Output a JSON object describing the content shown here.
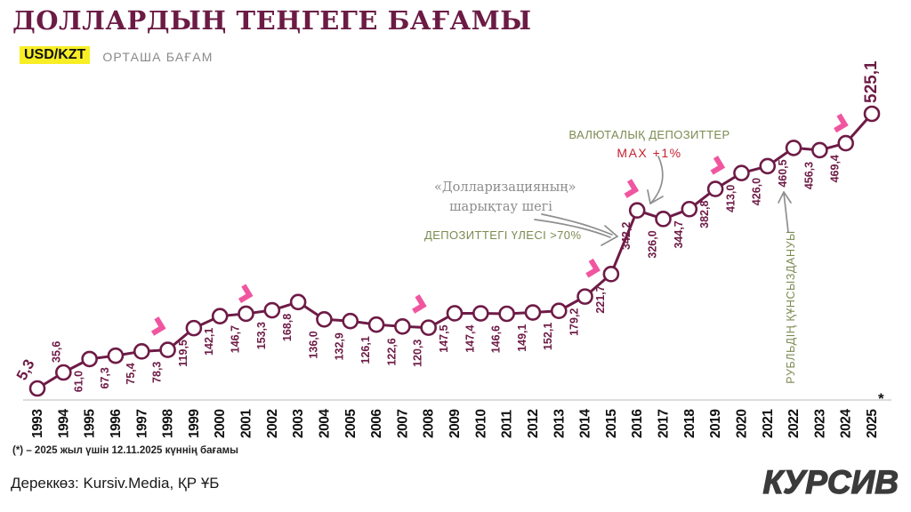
{
  "header": {
    "title": "ДОЛЛАРДЫҢ ТЕҢГЕГЕ БАҒАМЫ",
    "pair_badge": "USD/KZT",
    "subtitle": "ОРТАША БАҒАМ"
  },
  "chart_data": {
    "type": "line",
    "x": [
      1993,
      1994,
      1995,
      1996,
      1997,
      1998,
      1999,
      2000,
      2001,
      2002,
      2003,
      2004,
      2005,
      2006,
      2007,
      2008,
      2009,
      2010,
      2011,
      2012,
      2013,
      2014,
      2015,
      2016,
      2017,
      2018,
      2019,
      2020,
      2021,
      2022,
      2023,
      2024,
      2025
    ],
    "values": [
      5.3,
      35.6,
      61.0,
      67.3,
      75.4,
      78.3,
      119.5,
      142.1,
      146.7,
      153.3,
      168.8,
      136.0,
      132.9,
      126.1,
      122.6,
      120.3,
      147.5,
      147.4,
      146.6,
      149.1,
      152.1,
      179.2,
      221.7,
      342.2,
      326.0,
      344.7,
      382.8,
      413.0,
      426.0,
      460.5,
      456.3,
      469.4,
      525.1
    ],
    "display_labels": [
      "5,3",
      "35,6",
      "61,0",
      "67,3",
      "75,4",
      "78,3",
      "119,5",
      "142,1",
      "146,7",
      "153,3",
      "168,8",
      "136,0",
      "132,9",
      "126,1",
      "122,6",
      "120,3",
      "147,5",
      "147,4",
      "146,6",
      "149,1",
      "152,1",
      "179,2",
      "221,7",
      "342,2",
      "326,0",
      "344,7",
      "382,8",
      "413,0",
      "426,0",
      "460,5",
      "456,3",
      "469,4",
      "525,1"
    ],
    "ylim": [
      0,
      560
    ],
    "grid": false,
    "marker": "open-circle",
    "highlight_years": [
      1998,
      2001,
      2008,
      2015,
      2016,
      2019,
      2024
    ],
    "last_year_footnote_marker": "*",
    "title": "ДОЛЛАРДЫҢ ТЕҢГЕГЕ БАҒАМЫ",
    "subtitle": "USD/KZT ОРТАША БАҒАМ",
    "xlabel": "",
    "ylabel": ""
  },
  "annotations": {
    "fx_deposits": {
      "line1": "ВАЛЮТАЛЫҚ ДЕПОЗИТТЕР",
      "line2": "MAX +1%"
    },
    "dollarization": {
      "line1": "«Долларизацияның»",
      "line2": "шарықтау шегі"
    },
    "deposit_share": "ДЕПОЗИТТЕГІ ҮЛЕСІ >70%",
    "ruble": "РУБЛЬДІҢ ҚҰНСЫЗДАНУЫ"
  },
  "footer": {
    "footnote": "(*) – 2025 жыл үшін 12.11.2025 күннің бағамы",
    "source": "Дереккөз: Kursiv.Media, ҚР ҰБ",
    "logo": "КУРСИВ"
  },
  "colors": {
    "line": "#6e1b46",
    "marker_fill": "#ffffff",
    "value_label": "#6e1b46",
    "year_label": "#111111",
    "chevron_pink": "#f0569f",
    "annotation_green": "#7c8b51",
    "annotation_red": "#c5212f",
    "annotation_gray": "#8f8f8f",
    "axis_line": "#dcdcdc",
    "badge_yellow": "#f8ee26",
    "title_maroon": "#6b1b44",
    "logo_gray": "#3b3b3b"
  }
}
